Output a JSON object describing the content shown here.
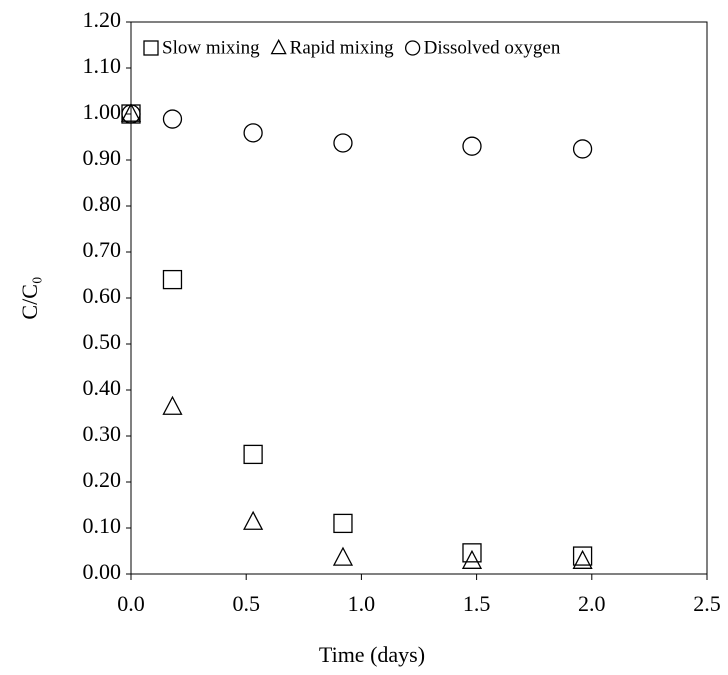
{
  "chart_data": {
    "type": "scatter",
    "xlabel": "Time (days)",
    "ylabel": "C/C₀",
    "x": [
      0,
      0.18,
      0.53,
      0.92,
      1.48,
      1.96
    ],
    "series": [
      {
        "name": "Slow mixing",
        "marker": "square",
        "color": "#000000",
        "values": [
          1.0,
          0.64,
          0.26,
          0.11,
          0.046,
          0.039
        ]
      },
      {
        "name": "Rapid mixing",
        "marker": "triangle",
        "color": "#000000",
        "values": [
          1.0,
          0.363,
          0.113,
          0.035,
          0.028,
          0.028
        ]
      },
      {
        "name": "Dissolved oxygen",
        "marker": "circle",
        "color": "#000000",
        "values": [
          1.0,
          0.989,
          0.959,
          0.937,
          0.93,
          0.924
        ]
      }
    ],
    "xlim": [
      0,
      2.5
    ],
    "xticks": [
      {
        "value": 0,
        "label": "0.0"
      },
      {
        "value": 0.5,
        "label": "0.5"
      },
      {
        "value": 1,
        "label": "1.0"
      },
      {
        "value": 1.5,
        "label": "1.5"
      },
      {
        "value": 2,
        "label": "2.0"
      },
      {
        "value": 2.5,
        "label": "2.5"
      }
    ],
    "ylim": [
      0,
      1.2
    ],
    "yticks": [
      {
        "value": 0,
        "label": "0.00"
      },
      {
        "value": 0.1,
        "label": "0.10"
      },
      {
        "value": 0.2,
        "label": "0.20"
      },
      {
        "value": 0.3,
        "label": "0.30"
      },
      {
        "value": 0.4,
        "label": "0.40"
      },
      {
        "value": 0.5,
        "label": "0.50"
      },
      {
        "value": 0.6,
        "label": "0.60"
      },
      {
        "value": 0.7,
        "label": "0.70"
      },
      {
        "value": 0.8,
        "label": "0.80"
      },
      {
        "value": 0.9,
        "label": "0.90"
      },
      {
        "value": 1,
        "label": "1.00"
      },
      {
        "value": 1.1,
        "label": "1.10"
      },
      {
        "value": 1.2,
        "label": "1.20"
      }
    ],
    "grid": false,
    "legend": "top"
  }
}
